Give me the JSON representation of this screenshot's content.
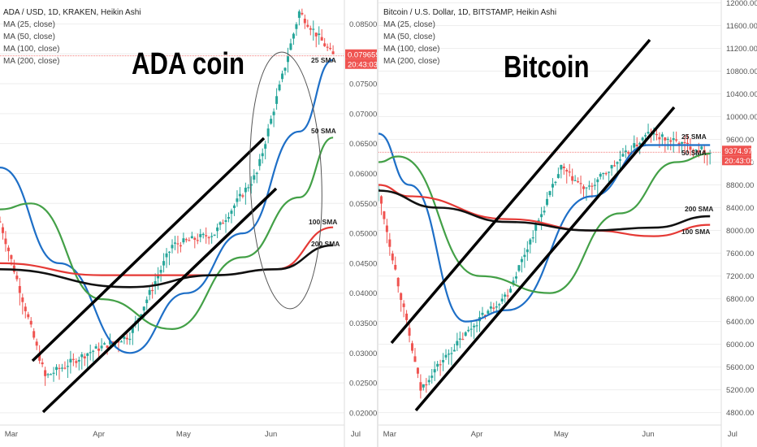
{
  "left": {
    "legend": {
      "title": "ADA / USD, 1D, KRAKEN, Heikin Ashi",
      "ma25": "MA (25, close)",
      "ma50": "MA (50, close)",
      "ma100": "MA (100, close)",
      "ma200": "MA (200, close)"
    },
    "big_label": "ADA coin",
    "price_tag": "0.079659",
    "time_tag": "20:43:03",
    "annotations": {
      "sma25": "25 SMA",
      "sma50": "50 SMA",
      "sma100": "100 SMA",
      "sma200": "200 SMA"
    }
  },
  "right": {
    "legend": {
      "title": "Bitcoin / U.S. Dollar, 1D, BITSTAMP, Heikin Ashi",
      "ma25": "MA (25, close)",
      "ma50": "MA (50, close)",
      "ma100": "MA (100, close)",
      "ma200": "MA (200, close)"
    },
    "big_label": "Bitcoin",
    "price_tag": "9374.97",
    "time_tag": "20:43:03",
    "annotations": {
      "sma25": "25 SMA",
      "sma50": "50 SMA",
      "sma200": "200 SMA",
      "sma100": "100 SMA"
    }
  },
  "colors": {
    "up": "#26a69a",
    "down": "#ef5350",
    "ma25": "#1e6fc7",
    "ma50": "#43a047",
    "ma100": "#e53935",
    "ma200": "#111111",
    "price_tag_bg": "#ef5350",
    "axis_text": "#555555",
    "grid": "#eeeeee"
  },
  "chart_data": [
    {
      "type": "candlestick",
      "title": "ADA / USD, 1D, KRAKEN, Heikin Ashi",
      "x_tick_labels": [
        "Mar",
        "Apr",
        "May",
        "Jun",
        "Jul"
      ],
      "y_tick_labels": [
        "0.085000",
        "0.080000",
        "0.075000",
        "0.070000",
        "0.065000",
        "0.060000",
        "0.055000",
        "0.050000",
        "0.045000",
        "0.040000",
        "0.035000",
        "0.030000",
        "0.025000",
        "0.020000"
      ],
      "ylim": [
        0.017,
        0.089
      ],
      "x": [
        "Feb 26",
        "Mar 13",
        "Mar 28",
        "Apr 12",
        "Apr 27",
        "May 12",
        "May 27",
        "Jun 11",
        "Jun 23"
      ],
      "close_approx": [
        0.052,
        0.026,
        0.03,
        0.033,
        0.048,
        0.05,
        0.06,
        0.087,
        0.0797
      ],
      "series": [
        {
          "name": "MA (25, close)",
          "x": [
            "Feb 26",
            "Mar 18",
            "Apr 12",
            "May 2",
            "May 22",
            "Jun 11",
            "Jun 23"
          ],
          "values": [
            0.061,
            0.045,
            0.03,
            0.04,
            0.05,
            0.067,
            0.079
          ]
        },
        {
          "name": "MA (50, close)",
          "x": [
            "Feb 26",
            "Mar 8",
            "Apr 2",
            "Apr 27",
            "May 22",
            "Jun 11",
            "Jun 23"
          ],
          "values": [
            0.054,
            0.055,
            0.039,
            0.034,
            0.046,
            0.056,
            0.066
          ]
        },
        {
          "name": "MA (100, close)",
          "x": [
            "Feb 26",
            "Apr 2",
            "May 12",
            "Jun 3",
            "Jun 23"
          ],
          "values": [
            0.045,
            0.043,
            0.043,
            0.044,
            0.051
          ]
        },
        {
          "name": "MA (200, close)",
          "x": [
            "Feb 26",
            "Apr 12",
            "May 12",
            "Jun 3",
            "Jun 23"
          ],
          "values": [
            0.044,
            0.041,
            0.043,
            0.044,
            0.048
          ]
        }
      ],
      "last_price": 0.079659
    },
    {
      "type": "candlestick",
      "title": "Bitcoin / U.S. Dollar, 1D, BITSTAMP, Heikin Ashi",
      "x_tick_labels": [
        "Mar",
        "Apr",
        "May",
        "Jun",
        "Jul"
      ],
      "y_tick_labels": [
        "12000.00",
        "11600.00",
        "11200.00",
        "10800.00",
        "10400.00",
        "10000.00",
        "9600.00",
        "9200.00",
        "8800.00",
        "8400.00",
        "8000.00",
        "7600.00",
        "7200.00",
        "6800.00",
        "6400.00",
        "6000.00",
        "5600.00",
        "5200.00",
        "4800.00"
      ],
      "ylim": [
        4480,
        12050
      ],
      "x": [
        "Feb 26",
        "Mar 12",
        "Mar 16",
        "Apr 1",
        "Apr 12",
        "May 1",
        "May 10",
        "Jun 1",
        "Jun 23"
      ],
      "close_approx": [
        8700,
        5200,
        5500,
        6400,
        6900,
        9100,
        8700,
        9700,
        9375
      ],
      "series": [
        {
          "name": "MA (25, close)",
          "x": [
            "Feb 26",
            "Mar 8",
            "Mar 28",
            "Apr 12",
            "May 12",
            "Jun 1",
            "Jun 23"
          ],
          "values": [
            9700,
            8800,
            6400,
            6600,
            8600,
            9500,
            9500
          ]
        },
        {
          "name": "MA (50, close)",
          "x": [
            "Feb 26",
            "Mar 4",
            "Apr 2",
            "Apr 27",
            "May 22",
            "Jun 11",
            "Jun 23"
          ],
          "values": [
            9200,
            9300,
            7200,
            6900,
            8300,
            9200,
            9350
          ]
        },
        {
          "name": "MA (100, close)",
          "x": [
            "Feb 26",
            "Mar 8",
            "Apr 12",
            "May 12",
            "Jun 3",
            "Jun 23"
          ],
          "values": [
            8800,
            8600,
            8200,
            8000,
            7900,
            8100
          ]
        },
        {
          "name": "MA (200, close)",
          "x": [
            "Feb 26",
            "Mar 18",
            "Apr 12",
            "May 12",
            "Jun 3",
            "Jun 23"
          ],
          "values": [
            8700,
            8400,
            8150,
            8000,
            8050,
            8250
          ]
        }
      ],
      "last_price": 9374.97
    }
  ]
}
